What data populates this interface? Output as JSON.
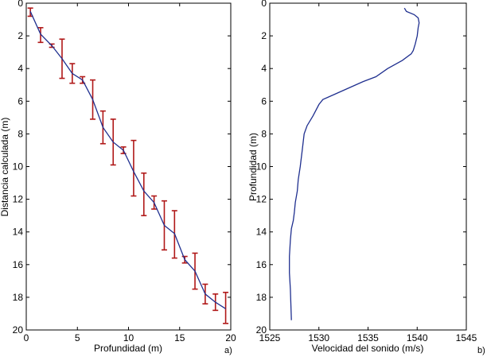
{
  "chart_data": [
    {
      "type": "line",
      "panel_label": "a)",
      "xlabel": "Profundidad (m)",
      "ylabel": "Distancia calculada (m)",
      "xlim": [
        0,
        20
      ],
      "ylim": [
        0,
        20
      ],
      "y_reversed": true,
      "xticks": [
        0,
        5,
        10,
        15,
        20
      ],
      "yticks": [
        0,
        2,
        4,
        6,
        8,
        10,
        12,
        14,
        16,
        18,
        20
      ],
      "grid": false,
      "colors": {
        "line": "#1f2f8f",
        "errorbar": "#b01818"
      },
      "series": [
        {
          "x": [
            0.4,
            1.4,
            2.5,
            3.5,
            4.5,
            5.5,
            6.5,
            7.5,
            8.5,
            9.5,
            10.5,
            11.5,
            12.5,
            13.5,
            14.5,
            15.5,
            16.5,
            17.5,
            18.5,
            19.5
          ],
          "y": [
            0.5,
            1.9,
            2.6,
            3.4,
            4.3,
            4.7,
            5.9,
            7.6,
            8.5,
            9.0,
            10.3,
            11.5,
            12.2,
            13.6,
            14.1,
            15.7,
            16.4,
            17.8,
            18.3,
            18.7
          ],
          "err_low": [
            0.2,
            0.4,
            0.1,
            1.2,
            0.6,
            0.2,
            1.2,
            1.0,
            1.4,
            0.2,
            1.9,
            1.1,
            0.4,
            1.5,
            1.4,
            0.2,
            1.1,
            0.6,
            0.5,
            1.0
          ],
          "err_high": [
            0.3,
            0.5,
            0.1,
            1.2,
            0.6,
            0.2,
            1.2,
            1.0,
            1.4,
            0.2,
            1.5,
            1.5,
            0.4,
            1.5,
            1.5,
            0.2,
            1.1,
            0.6,
            0.5,
            0.9
          ]
        }
      ]
    },
    {
      "type": "line",
      "panel_label": "b)",
      "xlabel": "Velocidad del sonido (m/s)",
      "ylabel": "Profundidad (m)",
      "xlim": [
        1525,
        1545
      ],
      "ylim": [
        0,
        20
      ],
      "y_reversed": true,
      "xticks": [
        1525,
        1530,
        1535,
        1540,
        1545
      ],
      "yticks": [
        0,
        2,
        4,
        6,
        8,
        10,
        12,
        14,
        16,
        18,
        20
      ],
      "grid": false,
      "colors": {
        "line": "#1f2f8f"
      },
      "series": [
        {
          "x": [
            1538.7,
            1538.9,
            1539.7,
            1540.1,
            1540.2,
            1540.1,
            1540.0,
            1539.8,
            1539.6,
            1539.4,
            1538.5,
            1537.0,
            1535.8,
            1534.5,
            1533.0,
            1531.5,
            1530.4,
            1530.0,
            1529.4,
            1528.8,
            1528.5,
            1528.3,
            1528.1,
            1527.9,
            1527.8,
            1527.6,
            1527.5,
            1527.4,
            1527.2,
            1527.1,
            1527.0,
            1527.0,
            1527.1,
            1527.2
          ],
          "y": [
            0.3,
            0.5,
            0.7,
            0.9,
            1.2,
            1.5,
            2.0,
            2.5,
            2.9,
            3.1,
            3.5,
            4.0,
            4.5,
            4.8,
            5.2,
            5.6,
            5.9,
            6.2,
            6.9,
            7.5,
            8.0,
            9.0,
            10.0,
            10.8,
            11.5,
            12.2,
            12.8,
            13.3,
            13.8,
            14.5,
            15.5,
            16.5,
            17.5,
            19.4
          ]
        }
      ]
    }
  ]
}
